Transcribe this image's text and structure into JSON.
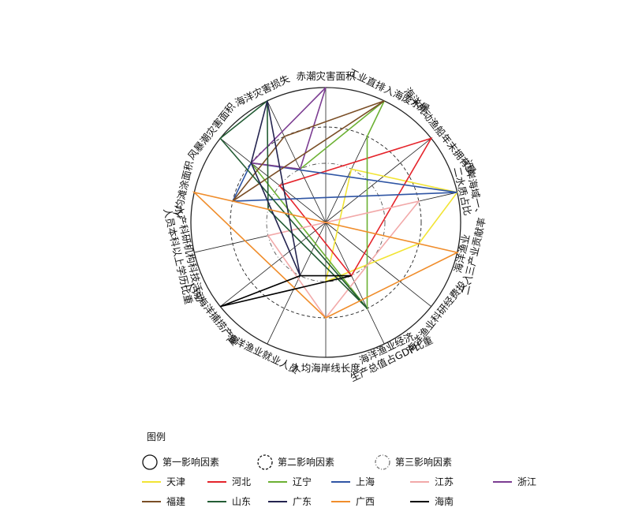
{
  "chart_data": {
    "type": "radar",
    "axes": [
      "赤潮灾害面积",
      "工业直排入海废水量",
      "海洋机动渔船年末拥有量",
      "近岸海域一、二水质占比",
      "海洋渔业二、三产业贡献率",
      "海洋渔业科研经费投入",
      "海洋渔业经济生产总值占GDP比重",
      "人均海岸线长度",
      "海洋渔业就业人员",
      "人均海洋捕捞产量",
      "水产科研机构科技活动人员本科以上学历比重",
      "人均滩涂面积",
      "风暴潮灾害面积",
      "海洋灾害损失"
    ],
    "axis_label_lines": [
      [
        "赤潮灾害面积"
      ],
      [
        "工业直排入海废水量"
      ],
      [
        "海洋机动渔船年末拥有量"
      ],
      [
        "近岸海域一、",
        "二水质占比"
      ],
      [
        "海洋渔业",
        "二、三产业贡献率"
      ],
      [
        "海洋渔业科研经费投入"
      ],
      [
        "海洋渔业经济",
        "生产总值占GDP比重"
      ],
      [
        "人均海岸线长度"
      ],
      [
        "海洋渔业就业人员"
      ],
      [
        "人均海洋捕捞产量"
      ],
      [
        "水产科研机构科技活动",
        "人员本科以上学历比重"
      ],
      [
        "人均滩涂面积"
      ],
      [
        "风暴潮灾害面积"
      ],
      [
        "海洋灾害损失"
      ]
    ],
    "rings": [
      {
        "level": 1,
        "name": "第一影响因素",
        "style": "solid"
      },
      {
        "level": 2,
        "name": "第二影响因素",
        "style": "dashed"
      },
      {
        "level": 3,
        "name": "第三影响因素",
        "style": "dashdot"
      }
    ],
    "legend_title": "图例",
    "series": [
      {
        "name": "天津",
        "color": "#f2e434",
        "points": [
          [
            1,
            3
          ],
          [
            3,
            1
          ],
          [
            4,
            2
          ],
          [
            7,
            3
          ]
        ]
      },
      {
        "name": "河北",
        "color": "#e5242b",
        "points": [
          [
            2,
            1
          ],
          [
            6,
            3
          ],
          [
            12,
            3
          ]
        ]
      },
      {
        "name": "辽宁",
        "color": "#6cb133",
        "points": [
          [
            1,
            1
          ],
          [
            1,
            2
          ],
          [
            6,
            2
          ],
          [
            12,
            2
          ],
          [
            13,
            3
          ]
        ]
      },
      {
        "name": "上海",
        "color": "#2f55a4",
        "points": [
          [
            3,
            1
          ],
          [
            11,
            2
          ],
          [
            12,
            2
          ]
        ]
      },
      {
        "name": "江苏",
        "color": "#f2a9a9",
        "points": [
          [
            3,
            2
          ],
          [
            5,
            3
          ],
          [
            7,
            2
          ],
          [
            10,
            3
          ]
        ]
      },
      {
        "name": "浙江",
        "color": "#7c3d92",
        "points": [
          [
            0,
            1
          ],
          [
            12,
            2
          ],
          [
            13,
            3
          ]
        ]
      },
      {
        "name": "福建",
        "color": "#7a4e26",
        "points": [
          [
            1,
            1
          ],
          [
            11,
            2
          ],
          [
            13,
            2
          ]
        ]
      },
      {
        "name": "山东",
        "color": "#245d35",
        "points": [
          [
            6,
            2
          ],
          [
            12,
            1
          ],
          [
            13,
            1
          ],
          [
            11,
            3
          ]
        ]
      },
      {
        "name": "广东",
        "color": "#24244f",
        "points": [
          [
            13,
            1
          ],
          [
            12,
            2
          ],
          [
            8,
            3
          ]
        ]
      },
      {
        "name": "广西",
        "color": "#f08d2b",
        "points": [
          [
            11,
            1
          ],
          [
            4,
            1
          ],
          [
            7,
            2
          ]
        ]
      },
      {
        "name": "海南",
        "color": "#000000",
        "points": [
          [
            9,
            1
          ],
          [
            6,
            3
          ],
          [
            8,
            3
          ]
        ]
      }
    ]
  }
}
